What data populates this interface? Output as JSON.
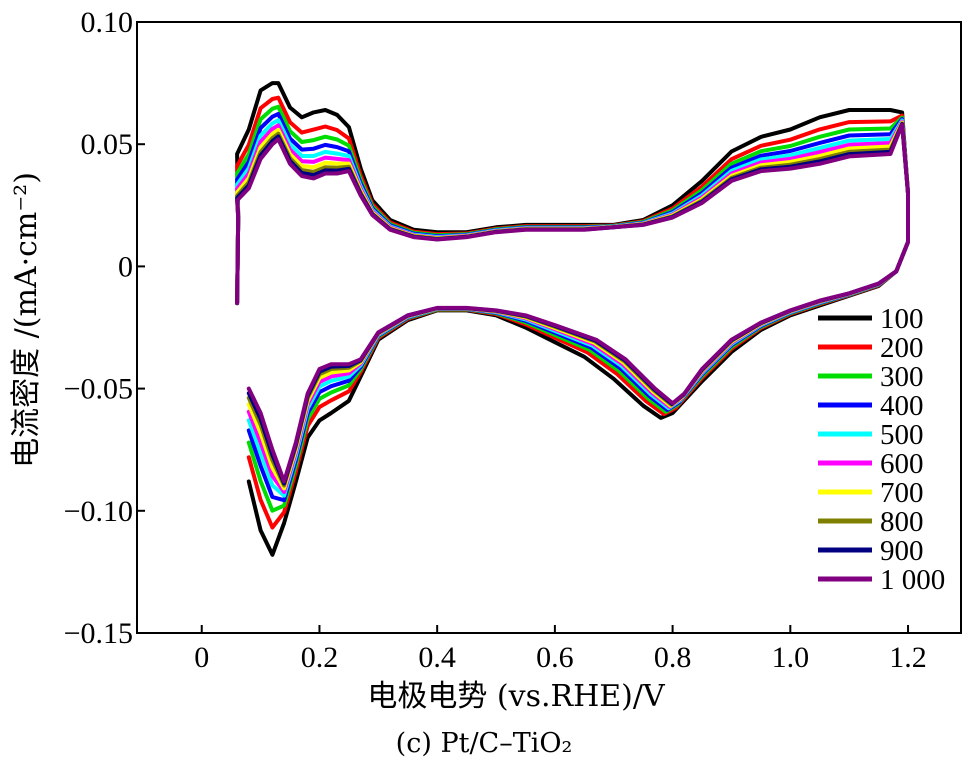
{
  "chart_data": {
    "type": "line",
    "xlabel": "电极电势 (vs.RHE)/V",
    "ylabel": "电流密度 /(mA·cm⁻²)",
    "caption": "(c) Pt/C–TiO₂",
    "xlim": [
      -0.11,
      1.29
    ],
    "ylim": [
      -0.15,
      0.1
    ],
    "xticks": [
      0,
      0.2,
      0.4,
      0.6,
      0.8,
      1.0,
      1.2
    ],
    "xtick_labels": [
      "0",
      "0.2",
      "0.4",
      "0.6",
      "0.8",
      "1.0",
      "1.2"
    ],
    "yticks": [
      0.1,
      0.05,
      0,
      -0.05,
      -0.1,
      -0.15
    ],
    "ytick_labels": [
      "0.10",
      "0.05",
      "0",
      "−0.05",
      "−0.10",
      "−0.15"
    ],
    "legend_position": "right",
    "series": [
      {
        "name": "100",
        "color": "#000000",
        "t": 0.0
      },
      {
        "name": "200",
        "color": "#ff0000",
        "t": 0.26
      },
      {
        "name": "300",
        "color": "#00dd00",
        "t": 0.42
      },
      {
        "name": "400",
        "color": "#0000ff",
        "t": 0.55
      },
      {
        "name": "500",
        "color": "#00ffff",
        "t": 0.66
      },
      {
        "name": "600",
        "color": "#ff00ff",
        "t": 0.75
      },
      {
        "name": "700",
        "color": "#ffff00",
        "t": 0.83
      },
      {
        "name": "800",
        "color": "#808000",
        "t": 0.9
      },
      {
        "name": "900",
        "color": "#000080",
        "t": 0.95
      },
      {
        "name": "1 000",
        "color": "#800080",
        "t": 1.0
      }
    ],
    "anodic_first": [
      [
        0.06,
        0.046
      ],
      [
        0.08,
        0.056
      ],
      [
        0.1,
        0.072
      ],
      [
        0.12,
        0.075
      ],
      [
        0.13,
        0.075
      ],
      [
        0.15,
        0.065
      ],
      [
        0.17,
        0.061
      ],
      [
        0.19,
        0.063
      ],
      [
        0.21,
        0.064
      ],
      [
        0.23,
        0.062
      ],
      [
        0.25,
        0.057
      ],
      [
        0.27,
        0.04
      ],
      [
        0.29,
        0.027
      ],
      [
        0.32,
        0.019
      ],
      [
        0.36,
        0.015
      ],
      [
        0.4,
        0.014
      ],
      [
        0.45,
        0.014
      ],
      [
        0.5,
        0.016
      ],
      [
        0.55,
        0.017
      ],
      [
        0.6,
        0.017
      ],
      [
        0.65,
        0.017
      ],
      [
        0.7,
        0.017
      ],
      [
        0.75,
        0.019
      ],
      [
        0.8,
        0.025
      ],
      [
        0.85,
        0.035
      ],
      [
        0.9,
        0.047
      ],
      [
        0.95,
        0.053
      ],
      [
        1.0,
        0.056
      ],
      [
        1.05,
        0.061
      ],
      [
        1.1,
        0.064
      ],
      [
        1.17,
        0.064
      ]
    ],
    "anodic_last": [
      [
        0.06,
        0.027
      ],
      [
        0.08,
        0.032
      ],
      [
        0.1,
        0.044
      ],
      [
        0.12,
        0.05
      ],
      [
        0.13,
        0.052
      ],
      [
        0.15,
        0.042
      ],
      [
        0.17,
        0.037
      ],
      [
        0.19,
        0.036
      ],
      [
        0.21,
        0.038
      ],
      [
        0.23,
        0.038
      ],
      [
        0.25,
        0.039
      ],
      [
        0.27,
        0.029
      ],
      [
        0.29,
        0.021
      ],
      [
        0.32,
        0.015
      ],
      [
        0.36,
        0.012
      ],
      [
        0.4,
        0.011
      ],
      [
        0.45,
        0.012
      ],
      [
        0.5,
        0.014
      ],
      [
        0.55,
        0.015
      ],
      [
        0.6,
        0.015
      ],
      [
        0.65,
        0.015
      ],
      [
        0.7,
        0.016
      ],
      [
        0.75,
        0.017
      ],
      [
        0.8,
        0.02
      ],
      [
        0.85,
        0.026
      ],
      [
        0.9,
        0.035
      ],
      [
        0.95,
        0.039
      ],
      [
        1.0,
        0.04
      ],
      [
        1.05,
        0.042
      ],
      [
        1.1,
        0.045
      ],
      [
        1.17,
        0.046
      ]
    ],
    "cathodic_first": [
      [
        1.2,
        0.01
      ],
      [
        1.18,
        -0.002
      ],
      [
        1.15,
        -0.008
      ],
      [
        1.1,
        -0.012
      ],
      [
        1.05,
        -0.016
      ],
      [
        1.0,
        -0.02
      ],
      [
        0.95,
        -0.026
      ],
      [
        0.9,
        -0.035
      ],
      [
        0.85,
        -0.047
      ],
      [
        0.8,
        -0.06
      ],
      [
        0.78,
        -0.062
      ],
      [
        0.75,
        -0.057
      ],
      [
        0.7,
        -0.046
      ],
      [
        0.65,
        -0.037
      ],
      [
        0.6,
        -0.031
      ],
      [
        0.55,
        -0.025
      ],
      [
        0.5,
        -0.02
      ],
      [
        0.45,
        -0.018
      ],
      [
        0.4,
        -0.018
      ],
      [
        0.35,
        -0.022
      ],
      [
        0.3,
        -0.03
      ],
      [
        0.27,
        -0.045
      ],
      [
        0.25,
        -0.055
      ],
      [
        0.22,
        -0.06
      ],
      [
        0.2,
        -0.063
      ],
      [
        0.18,
        -0.07
      ],
      [
        0.16,
        -0.088
      ],
      [
        0.14,
        -0.105
      ],
      [
        0.12,
        -0.118
      ],
      [
        0.1,
        -0.108
      ],
      [
        0.08,
        -0.088
      ]
    ],
    "cathodic_last": [
      [
        1.2,
        0.01
      ],
      [
        1.18,
        -0.002
      ],
      [
        1.15,
        -0.007
      ],
      [
        1.1,
        -0.011
      ],
      [
        1.05,
        -0.014
      ],
      [
        1.0,
        -0.018
      ],
      [
        0.95,
        -0.023
      ],
      [
        0.9,
        -0.03
      ],
      [
        0.85,
        -0.042
      ],
      [
        0.82,
        -0.052
      ],
      [
        0.8,
        -0.056
      ],
      [
        0.77,
        -0.05
      ],
      [
        0.72,
        -0.038
      ],
      [
        0.67,
        -0.03
      ],
      [
        0.6,
        -0.024
      ],
      [
        0.55,
        -0.02
      ],
      [
        0.5,
        -0.018
      ],
      [
        0.45,
        -0.017
      ],
      [
        0.4,
        -0.017
      ],
      [
        0.35,
        -0.02
      ],
      [
        0.3,
        -0.027
      ],
      [
        0.27,
        -0.038
      ],
      [
        0.25,
        -0.04
      ],
      [
        0.22,
        -0.04
      ],
      [
        0.2,
        -0.042
      ],
      [
        0.18,
        -0.052
      ],
      [
        0.16,
        -0.072
      ],
      [
        0.14,
        -0.088
      ],
      [
        0.12,
        -0.075
      ],
      [
        0.1,
        -0.06
      ],
      [
        0.08,
        -0.05
      ]
    ]
  }
}
